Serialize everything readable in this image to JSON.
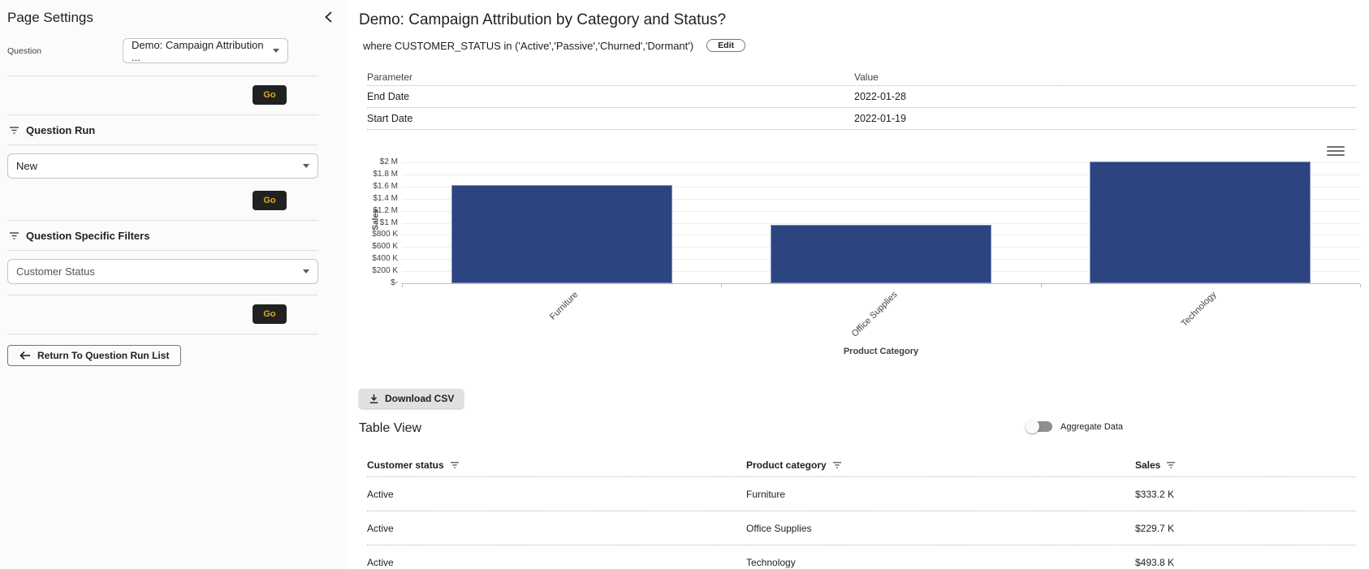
{
  "sidebar": {
    "title": "Page Settings",
    "question_label": "Question",
    "question_value": "Demo: Campaign Attribution ...",
    "go_label": "Go",
    "question_run_label": "Question Run",
    "question_run_value": "New",
    "filters_label": "Question Specific Filters",
    "filters_value": "Customer Status",
    "return_label": "Return To Question Run List"
  },
  "main": {
    "title": "Demo: Campaign Attribution by Category and Status?",
    "where_clause": "where CUSTOMER_STATUS in ('Active','Passive','Churned','Dormant')",
    "edit_label": "Edit",
    "params": {
      "columns": [
        "Parameter",
        "Value"
      ],
      "rows": [
        [
          "End Date",
          "2022-01-28"
        ],
        [
          "Start Date",
          "2022-01-19"
        ]
      ]
    },
    "download_label": "Download CSV",
    "table_view": {
      "title": "Table View",
      "toggle_label": "Aggregate Data",
      "columns": [
        "Customer status",
        "Product category",
        "Sales"
      ],
      "rows": [
        [
          "Active",
          "Furniture",
          "$333.2 K"
        ],
        [
          "Active",
          "Office Supplies",
          "$229.7 K"
        ],
        [
          "Active",
          "Technology",
          "$493.8 K"
        ]
      ]
    }
  },
  "chart_data": {
    "type": "bar",
    "categories": [
      "Furniture",
      "Office Supplies",
      "Technology"
    ],
    "values": [
      1620000,
      970000,
      2020000
    ],
    "title": "",
    "xlabel": "Product Category",
    "ylabel": "Sales",
    "ylim": [
      0,
      2000000
    ],
    "yticks": [
      {
        "value": 0,
        "label": "$-"
      },
      {
        "value": 200000,
        "label": "$200 K"
      },
      {
        "value": 400000,
        "label": "$400 K"
      },
      {
        "value": 600000,
        "label": "$600 K"
      },
      {
        "value": 800000,
        "label": "$800 K"
      },
      {
        "value": 1000000,
        "label": "$1 M"
      },
      {
        "value": 1200000,
        "label": "$1.2 M"
      },
      {
        "value": 1400000,
        "label": "$1.4 M"
      },
      {
        "value": 1600000,
        "label": "$1.6 M"
      },
      {
        "value": 1800000,
        "label": "$1.8 M"
      },
      {
        "value": 2000000,
        "label": "$2 M"
      }
    ],
    "grid": true,
    "legend": false,
    "bar_color": "#2c4480"
  },
  "colors": {
    "bar": "#2c4480",
    "button_dark": "#212121",
    "accent_gold": "#dca921",
    "dotted_divider": "#a9bac4"
  }
}
